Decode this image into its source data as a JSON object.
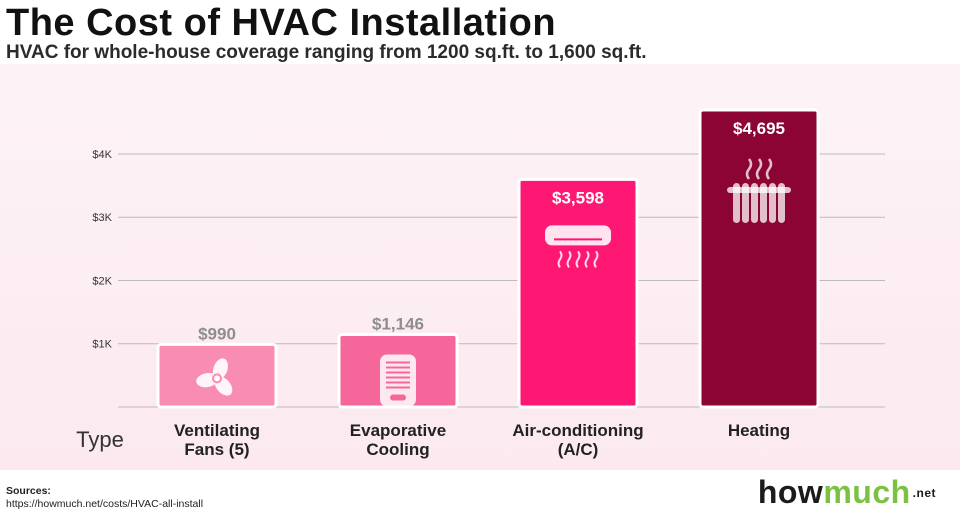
{
  "chart_data": {
    "type": "bar",
    "title": "The Cost of HVAC Installation",
    "subtitle": "HVAC for whole-house coverage ranging from 1200 sq.ft. to 1,600 sq.ft.",
    "xlabel": "Type",
    "ylabel": "",
    "categories": [
      [
        "Ventilating",
        "Fans (5)"
      ],
      [
        "Evaporative",
        "Cooling"
      ],
      [
        "Air-conditioning",
        "(A/C)"
      ],
      [
        "Heating"
      ]
    ],
    "values": [
      990,
      1146,
      3598,
      4695
    ],
    "value_labels": [
      "$990",
      "$1,146",
      "$3,598",
      "$4,695"
    ],
    "bar_colors": [
      "#f98cb3",
      "#f5679b",
      "#ff1873",
      "#8c0433"
    ],
    "value_label_colors": [
      "#8e8e8e",
      "#8e8e8e",
      "#ffffff",
      "#ffffff"
    ],
    "bar_icons": [
      "fan-icon",
      "evaporative-cooler-icon",
      "air-conditioner-icon",
      "radiator-icon"
    ],
    "yticks": [
      1000,
      2000,
      3000,
      4000
    ],
    "ytick_labels": [
      "$1K",
      "$2K",
      "$3K",
      "$4K"
    ],
    "ylim": [
      0,
      4695
    ],
    "grid": true
  },
  "sources": {
    "label": "Sources:",
    "url": "https://howmuch.net/costs/HVAC-all-install"
  },
  "logo": {
    "part1": "how",
    "part2": "much",
    "part3": ".net"
  }
}
